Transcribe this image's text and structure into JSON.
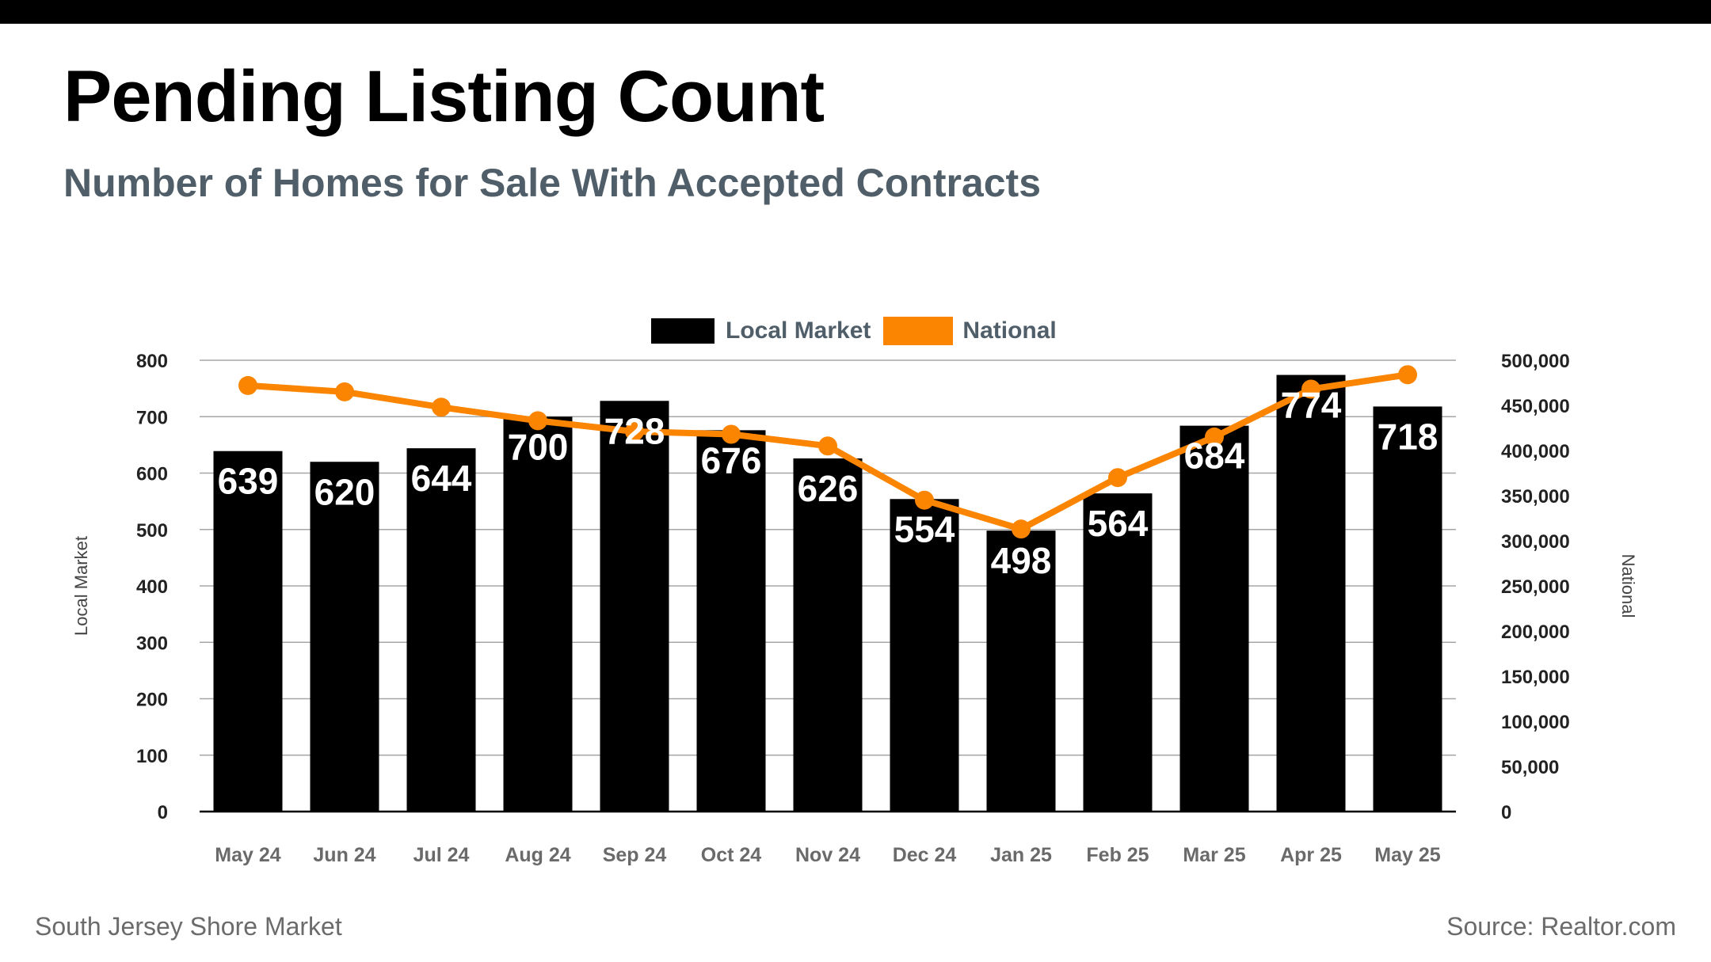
{
  "title": "Pending Listing Count",
  "subtitle": "Number of Homes for Sale With Accepted Contracts",
  "footer": {
    "left": "South Jersey Shore Market",
    "right": "Source: Realtor.com"
  },
  "colors": {
    "bar": "#000000",
    "line": "#fb8500",
    "subtitle": "#4f5e68",
    "grid": "#a6a6a6"
  },
  "chart_data": {
    "type": "bar",
    "categories": [
      "May 24",
      "Jun 24",
      "Jul 24",
      "Aug 24",
      "Sep 24",
      "Oct 24",
      "Nov 24",
      "Dec 24",
      "Jan 25",
      "Feb 25",
      "Mar 25",
      "Apr 25",
      "May 25"
    ],
    "series": [
      {
        "name": "Local Market",
        "type": "bar",
        "axis": "left",
        "values": [
          639,
          620,
          644,
          700,
          728,
          676,
          626,
          554,
          498,
          564,
          684,
          774,
          718
        ]
      },
      {
        "name": "National",
        "type": "line",
        "axis": "right",
        "values": [
          472000,
          465000,
          448000,
          433000,
          421000,
          418000,
          405000,
          345000,
          313000,
          370000,
          415000,
          468000,
          484000
        ]
      }
    ],
    "ylabel_left": "Local Market",
    "ylabel_right": "National",
    "ylim_left": [
      0,
      800
    ],
    "yticks_left": [
      "0",
      "100",
      "200",
      "300",
      "400",
      "500",
      "600",
      "700",
      "800"
    ],
    "ylim_right": [
      0,
      500000
    ],
    "yticks_right": [
      "0",
      "50,000",
      "100,000",
      "150,000",
      "200,000",
      "250,000",
      "300,000",
      "350,000",
      "400,000",
      "450,000",
      "500,000"
    ],
    "legend": [
      "Local Market",
      "National"
    ],
    "legend_position": "top-center",
    "grid": true
  }
}
